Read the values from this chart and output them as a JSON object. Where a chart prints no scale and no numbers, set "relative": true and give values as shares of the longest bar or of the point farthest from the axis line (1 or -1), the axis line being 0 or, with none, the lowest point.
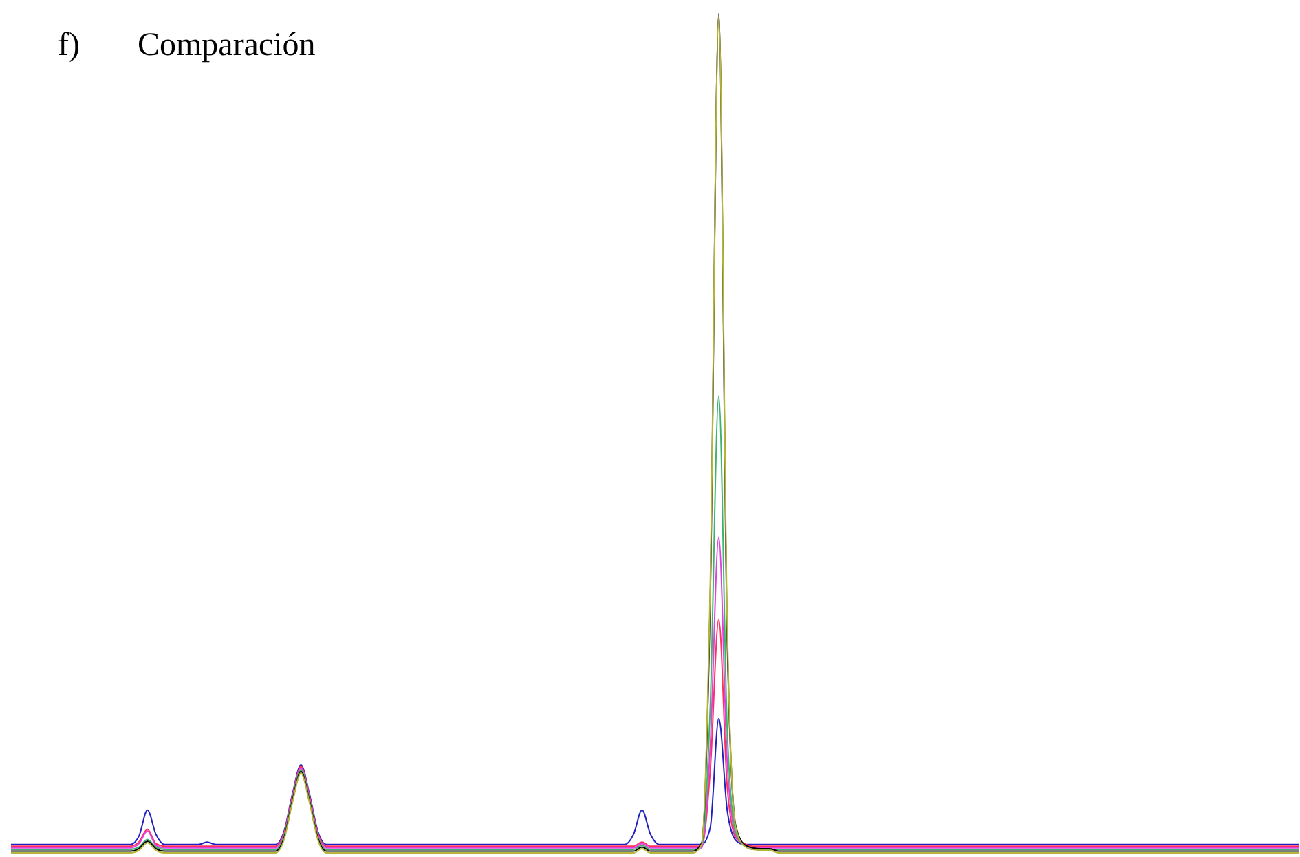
{
  "chart_data": {
    "type": "line",
    "title": "f)       Comparación",
    "relative": true,
    "categories": [
      null,
      null,
      null,
      null,
      null,
      null,
      null,
      null,
      null,
      null,
      null,
      null,
      null,
      null,
      null,
      null,
      null,
      null,
      null,
      null,
      null,
      null,
      null,
      null,
      null,
      null,
      null,
      null,
      null,
      null,
      null,
      null,
      null,
      null,
      null,
      null,
      null,
      null,
      null,
      null,
      null,
      null,
      null,
      null,
      null,
      null,
      null,
      null,
      null,
      null,
      null,
      null,
      null,
      null,
      null,
      null,
      null,
      null,
      null,
      null,
      null,
      null,
      null,
      null,
      null,
      null,
      null,
      null,
      null,
      null,
      null,
      null,
      null,
      null,
      null,
      null,
      null,
      null,
      null,
      null,
      null,
      null,
      null,
      null,
      null,
      null,
      null,
      null,
      null,
      null,
      null,
      null,
      null,
      null,
      null,
      null,
      null,
      null,
      null,
      null,
      null,
      null,
      null,
      null,
      null,
      null,
      null,
      null,
      null,
      null,
      null,
      null,
      null,
      null,
      null,
      null,
      null,
      null,
      null,
      null,
      null,
      null,
      null,
      null,
      null,
      null,
      null,
      null,
      null,
      null,
      null,
      null,
      null,
      null,
      null,
      null,
      null,
      null,
      null,
      null,
      null,
      null,
      null,
      null,
      null,
      null,
      null,
      null,
      null,
      null,
      null,
      null
    ],
    "series": [
      {
        "color": "#2020c0",
        "values": [
          0.01,
          0.01,
          0.01,
          0.01,
          0.01,
          0.01,
          0.01,
          0.01,
          0.01,
          0.01,
          0.01,
          0.01,
          0.01,
          0.01,
          0.01,
          0.02,
          0.051,
          0.022,
          0.01,
          0.01,
          0.01,
          0.01,
          0.01,
          0.013,
          0.01,
          0.01,
          0.01,
          0.01,
          0.01,
          0.01,
          0.01,
          0.01,
          0.025,
          0.07,
          0.105,
          0.07,
          0.025,
          0.01,
          0.01,
          0.01,
          0.01,
          0.01,
          0.01,
          0.01,
          0.01,
          0.01,
          0.01,
          0.01,
          0.01,
          0.01,
          0.01,
          0.01,
          0.01,
          0.01,
          0.01,
          0.01,
          0.01,
          0.01,
          0.01,
          0.01,
          0.01,
          0.01,
          0.01,
          0.01,
          0.01,
          0.01,
          0.01,
          0.01,
          0.01,
          0.01,
          0.01,
          0.01,
          0.01,
          0.022,
          0.051,
          0.022,
          0.01,
          0.01,
          0.01,
          0.01,
          0.01,
          0.01,
          0.03,
          0.16,
          0.05,
          0.015,
          0.01,
          0.01,
          0.01,
          0.01,
          0.01,
          0.01,
          0.01,
          0.01,
          0.01,
          0.01,
          0.01,
          0.01,
          0.01,
          0.01,
          0.01,
          0.01,
          0.01,
          0.01,
          0.01,
          0.01,
          0.01,
          0.01,
          0.01,
          0.01,
          0.01,
          0.01,
          0.01,
          0.01,
          0.01,
          0.01,
          0.01,
          0.01,
          0.01,
          0.01,
          0.01,
          0.01,
          0.01,
          0.01,
          0.01,
          0.01,
          0.01,
          0.01,
          0.01,
          0.01,
          0.01,
          0.01,
          0.01,
          0.01,
          0.01,
          0.01,
          0.01,
          0.01,
          0.01,
          0.01,
          0.01,
          0.01,
          0.01,
          0.01,
          0.01,
          0.01,
          0.01,
          0.01,
          0.01,
          0.01,
          0.01,
          0.01
        ]
      },
      {
        "color": "#ff3060",
        "values": [
          0.008,
          0.008,
          0.008,
          0.008,
          0.008,
          0.008,
          0.008,
          0.008,
          0.008,
          0.008,
          0.008,
          0.008,
          0.008,
          0.008,
          0.008,
          0.013,
          0.028,
          0.011,
          0.008,
          0.008,
          0.008,
          0.008,
          0.008,
          0.008,
          0.008,
          0.008,
          0.008,
          0.008,
          0.008,
          0.008,
          0.008,
          0.008,
          0.023,
          0.068,
          0.103,
          0.068,
          0.023,
          0.008,
          0.008,
          0.008,
          0.008,
          0.008,
          0.008,
          0.008,
          0.008,
          0.008,
          0.008,
          0.008,
          0.008,
          0.008,
          0.008,
          0.008,
          0.008,
          0.008,
          0.008,
          0.008,
          0.008,
          0.008,
          0.008,
          0.008,
          0.008,
          0.008,
          0.008,
          0.008,
          0.008,
          0.008,
          0.008,
          0.008,
          0.008,
          0.008,
          0.008,
          0.008,
          0.008,
          0.008,
          0.013,
          0.008,
          0.008,
          0.008,
          0.008,
          0.008,
          0.008,
          0.008,
          0.098,
          0.278,
          0.078,
          0.018,
          0.011,
          0.008,
          0.008,
          0.008,
          0.008,
          0.008,
          0.008,
          0.008,
          0.008,
          0.008,
          0.008,
          0.008,
          0.008,
          0.008,
          0.008,
          0.008,
          0.008,
          0.008,
          0.008,
          0.008,
          0.008,
          0.008,
          0.008,
          0.008,
          0.008,
          0.008,
          0.008,
          0.008,
          0.008,
          0.008,
          0.008,
          0.008,
          0.008,
          0.008,
          0.008,
          0.008,
          0.008,
          0.008,
          0.008,
          0.008,
          0.008,
          0.008,
          0.008,
          0.008,
          0.008,
          0.008,
          0.008,
          0.008,
          0.008,
          0.008,
          0.008,
          0.008,
          0.008,
          0.008,
          0.008,
          0.008,
          0.008,
          0.008,
          0.008,
          0.008,
          0.008,
          0.008,
          0.008,
          0.008,
          0.008,
          0.008
        ]
      },
      {
        "color": "#e040e0",
        "values": [
          0.006,
          0.006,
          0.006,
          0.006,
          0.006,
          0.006,
          0.006,
          0.006,
          0.006,
          0.006,
          0.006,
          0.006,
          0.006,
          0.006,
          0.006,
          0.011,
          0.026,
          0.009,
          0.006,
          0.006,
          0.006,
          0.006,
          0.006,
          0.006,
          0.006,
          0.006,
          0.006,
          0.006,
          0.006,
          0.006,
          0.006,
          0.006,
          0.021,
          0.066,
          0.101,
          0.066,
          0.021,
          0.006,
          0.006,
          0.006,
          0.006,
          0.006,
          0.006,
          0.006,
          0.006,
          0.006,
          0.006,
          0.006,
          0.006,
          0.006,
          0.006,
          0.006,
          0.006,
          0.006,
          0.006,
          0.006,
          0.006,
          0.006,
          0.006,
          0.006,
          0.006,
          0.006,
          0.006,
          0.006,
          0.006,
          0.006,
          0.006,
          0.006,
          0.006,
          0.006,
          0.006,
          0.006,
          0.006,
          0.006,
          0.011,
          0.006,
          0.006,
          0.006,
          0.006,
          0.006,
          0.006,
          0.006,
          0.126,
          0.376,
          0.106,
          0.021,
          0.009,
          0.006,
          0.006,
          0.006,
          0.006,
          0.006,
          0.006,
          0.006,
          0.006,
          0.006,
          0.006,
          0.006,
          0.006,
          0.006,
          0.006,
          0.006,
          0.006,
          0.006,
          0.006,
          0.006,
          0.006,
          0.006,
          0.006,
          0.006,
          0.006,
          0.006,
          0.006,
          0.006,
          0.006,
          0.006,
          0.006,
          0.006,
          0.006,
          0.006,
          0.006,
          0.006,
          0.006,
          0.006,
          0.006,
          0.006,
          0.006,
          0.006,
          0.006,
          0.006,
          0.006,
          0.006,
          0.006,
          0.006,
          0.006,
          0.006,
          0.006,
          0.006,
          0.006,
          0.006,
          0.006,
          0.006,
          0.006,
          0.006,
          0.006,
          0.006,
          0.006,
          0.006,
          0.006,
          0.006,
          0.006,
          0.006
        ]
      },
      {
        "color": "#3cb371",
        "values": [
          0.004,
          0.004,
          0.004,
          0.004,
          0.004,
          0.004,
          0.004,
          0.004,
          0.004,
          0.004,
          0.004,
          0.004,
          0.004,
          0.004,
          0.004,
          0.007,
          0.016,
          0.007,
          0.004,
          0.004,
          0.004,
          0.004,
          0.004,
          0.004,
          0.004,
          0.004,
          0.004,
          0.004,
          0.004,
          0.004,
          0.004,
          0.004,
          0.019,
          0.064,
          0.099,
          0.064,
          0.019,
          0.004,
          0.004,
          0.004,
          0.004,
          0.004,
          0.004,
          0.004,
          0.004,
          0.004,
          0.004,
          0.004,
          0.004,
          0.004,
          0.004,
          0.004,
          0.004,
          0.004,
          0.004,
          0.004,
          0.004,
          0.004,
          0.004,
          0.004,
          0.004,
          0.004,
          0.004,
          0.004,
          0.004,
          0.004,
          0.004,
          0.004,
          0.004,
          0.004,
          0.004,
          0.004,
          0.004,
          0.004,
          0.009,
          0.004,
          0.004,
          0.004,
          0.004,
          0.004,
          0.004,
          0.009,
          0.174,
          0.544,
          0.144,
          0.024,
          0.009,
          0.004,
          0.004,
          0.004,
          0.004,
          0.004,
          0.004,
          0.004,
          0.004,
          0.004,
          0.004,
          0.004,
          0.004,
          0.004,
          0.004,
          0.004,
          0.004,
          0.004,
          0.004,
          0.004,
          0.004,
          0.004,
          0.004,
          0.004,
          0.004,
          0.004,
          0.004,
          0.004,
          0.004,
          0.004,
          0.004,
          0.004,
          0.004,
          0.004,
          0.004,
          0.004,
          0.004,
          0.004,
          0.004,
          0.004,
          0.004,
          0.004,
          0.004,
          0.004,
          0.004,
          0.004,
          0.004,
          0.004,
          0.004,
          0.004,
          0.004,
          0.004,
          0.004,
          0.004,
          0.004,
          0.004,
          0.004,
          0.004,
          0.004,
          0.004,
          0.004,
          0.004,
          0.004,
          0.004,
          0.004,
          0.004
        ]
      },
      {
        "color": "#000000",
        "values": [
          0.002,
          0.002,
          0.002,
          0.002,
          0.002,
          0.002,
          0.002,
          0.002,
          0.002,
          0.002,
          0.002,
          0.002,
          0.002,
          0.002,
          0.002,
          0.005,
          0.014,
          0.005,
          0.002,
          0.002,
          0.002,
          0.002,
          0.002,
          0.002,
          0.002,
          0.002,
          0.002,
          0.002,
          0.002,
          0.002,
          0.002,
          0.002,
          0.017,
          0.062,
          0.097,
          0.062,
          0.017,
          0.002,
          0.002,
          0.002,
          0.002,
          0.002,
          0.002,
          0.002,
          0.002,
          0.002,
          0.002,
          0.002,
          0.002,
          0.002,
          0.002,
          0.002,
          0.002,
          0.002,
          0.002,
          0.002,
          0.002,
          0.002,
          0.002,
          0.002,
          0.002,
          0.002,
          0.002,
          0.002,
          0.002,
          0.002,
          0.002,
          0.002,
          0.002,
          0.002,
          0.002,
          0.002,
          0.002,
          0.002,
          0.007,
          0.002,
          0.002,
          0.002,
          0.002,
          0.002,
          0.002,
          0.012,
          0.302,
          1,
          0.252,
          0.032,
          0.01,
          0.006,
          0.005,
          0.005,
          0.002,
          0.002,
          0.002,
          0.002,
          0.002,
          0.002,
          0.002,
          0.002,
          0.002,
          0.002,
          0.002,
          0.002,
          0.002,
          0.002,
          0.002,
          0.002,
          0.002,
          0.002,
          0.002,
          0.002,
          0.002,
          0.002,
          0.002,
          0.002,
          0.002,
          0.002,
          0.002,
          0.002,
          0.002,
          0.002,
          0.002,
          0.002,
          0.002,
          0.002,
          0.002,
          0.002,
          0.002,
          0.002,
          0.002,
          0.002,
          0.002,
          0.002,
          0.002,
          0.002,
          0.002,
          0.002,
          0.002,
          0.002,
          0.002,
          0.002,
          0.002,
          0.002,
          0.002,
          0.002,
          0.002,
          0.002,
          0.002,
          0.002,
          0.002,
          0.002,
          0.002,
          0.002
        ]
      },
      {
        "color": "#b5b53a",
        "values": [
          0,
          0,
          0,
          0,
          0,
          0,
          0,
          0,
          0,
          0,
          0,
          0,
          0,
          0,
          0,
          0.003,
          0.012,
          0.003,
          0,
          0,
          0,
          0,
          0,
          0,
          0,
          0,
          0,
          0,
          0,
          0,
          0,
          0,
          0.015,
          0.06,
          0.095,
          0.06,
          0.015,
          0,
          0,
          0,
          0,
          0,
          0,
          0,
          0,
          0,
          0,
          0,
          0,
          0,
          0,
          0,
          0,
          0,
          0,
          0,
          0,
          0,
          0,
          0,
          0,
          0,
          0,
          0,
          0,
          0,
          0,
          0,
          0,
          0,
          0,
          0,
          0,
          0,
          0.005,
          0,
          0,
          0,
          0,
          0,
          0,
          0.01,
          0.32,
          0.998,
          0.27,
          0.03,
          0.008,
          0.004,
          0.003,
          0.003,
          0,
          0,
          0,
          0,
          0,
          0,
          0,
          0,
          0,
          0,
          0,
          0,
          0,
          0,
          0,
          0,
          0,
          0,
          0,
          0,
          0,
          0,
          0,
          0,
          0,
          0,
          0,
          0,
          0,
          0,
          0,
          0,
          0,
          0,
          0,
          0,
          0,
          0,
          0,
          0,
          0,
          0,
          0,
          0,
          0,
          0,
          0,
          0,
          0,
          0,
          0,
          0,
          0,
          0,
          0,
          0,
          0,
          0,
          0,
          0,
          0,
          0
        ]
      }
    ]
  }
}
